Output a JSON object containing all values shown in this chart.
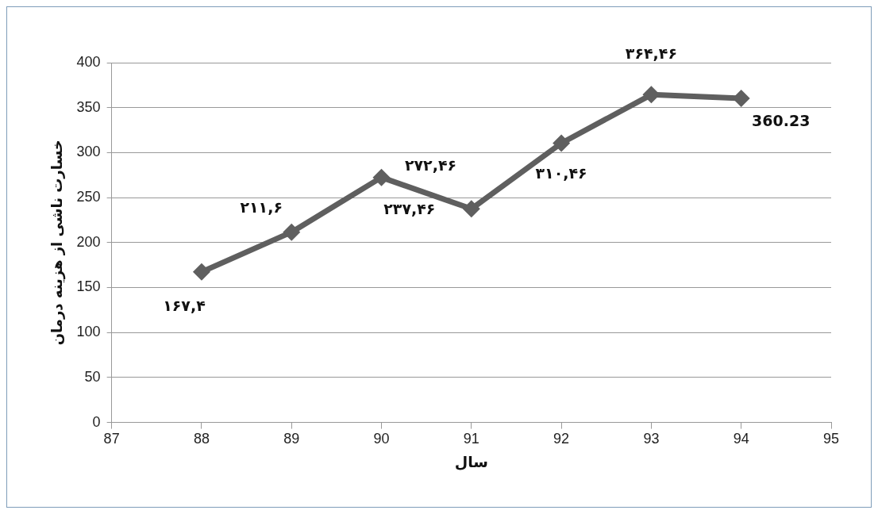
{
  "chart_data": {
    "type": "line",
    "xlabel": "سال",
    "ylabel": "خسارت ناشی از هزینه درمان",
    "x": [
      88,
      89,
      90,
      91,
      92,
      93,
      94
    ],
    "series": [
      {
        "color": "#5f5f5f",
        "values": [
          167.4,
          211.6,
          272.46,
          237.46,
          310.46,
          364.46,
          360.23
        ],
        "value_labels": [
          "۱۶۷,۴",
          "۲۱۱,۶",
          "۲۷۲,۴۶",
          "۲۳۷,۴۶",
          "۳۱۰,۴۶",
          "۳۶۴,۴۶",
          "360.23"
        ]
      }
    ],
    "xlim": [
      87,
      95
    ],
    "xticks": [
      87,
      88,
      89,
      90,
      91,
      92,
      93,
      94,
      95
    ],
    "ylim": [
      0,
      400
    ],
    "yticks": [
      0,
      50,
      100,
      150,
      200,
      250,
      300,
      350,
      400
    ],
    "grid": "y",
    "marker": "diamond",
    "line_style": "solid",
    "legend": false
  }
}
